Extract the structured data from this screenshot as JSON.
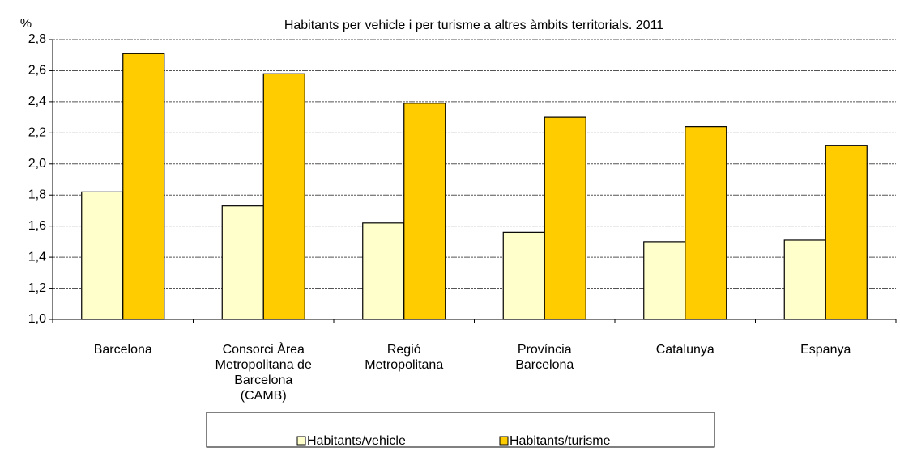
{
  "chart_data": {
    "type": "bar",
    "title": "Habitants per  vehicle i per  turisme a altres àmbits territorials. 2011",
    "y_label": "%",
    "categories": [
      "Barcelona",
      "Consorci Àrea\nMetropolitana de\nBarcelona\n(CAMB)",
      "Regió\nMetropolitana",
      "Província\nBarcelona",
      "Catalunya",
      "Espanya"
    ],
    "series": [
      {
        "name": "Habitants/vehicle",
        "color": "#ffffcc",
        "values": [
          1.82,
          1.73,
          1.62,
          1.56,
          1.5,
          1.51
        ]
      },
      {
        "name": "Habitants/turisme",
        "color": "#ffcc00",
        "values": [
          2.71,
          2.58,
          2.39,
          2.3,
          2.24,
          2.12
        ]
      }
    ],
    "ylim": [
      1.0,
      2.8
    ],
    "yticks": [
      {
        "value": 1.0,
        "label": "1,0"
      },
      {
        "value": 1.2,
        "label": "1,2"
      },
      {
        "value": 1.4,
        "label": "1,4"
      },
      {
        "value": 1.6,
        "label": "1,6"
      },
      {
        "value": 1.8,
        "label": "1,8"
      },
      {
        "value": 2.0,
        "label": "2,0"
      },
      {
        "value": 2.2,
        "label": "2,2"
      },
      {
        "value": 2.4,
        "label": "2,4"
      },
      {
        "value": 2.6,
        "label": "2,6"
      },
      {
        "value": 2.8,
        "label": "2,8"
      }
    ],
    "grid": true,
    "legend": "bottom"
  }
}
